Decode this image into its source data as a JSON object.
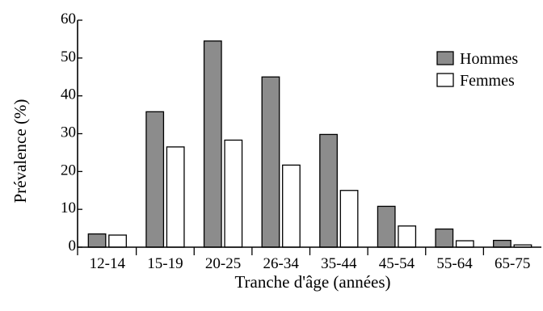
{
  "chart_data": {
    "type": "bar",
    "xlabel": "Tranche d'âge (années)",
    "ylabel": "Prévalence (%)",
    "ylim": [
      0,
      60
    ],
    "yticks": [
      {
        "value": 0,
        "label": "0"
      },
      {
        "value": 10,
        "label": "10"
      },
      {
        "value": 20,
        "label": "20"
      },
      {
        "value": 30,
        "label": "30"
      },
      {
        "value": 40,
        "label": "40"
      },
      {
        "value": 50,
        "label": "50"
      },
      {
        "value": 60,
        "label": "60"
      }
    ],
    "categories": [
      "12-14",
      "15-19",
      "20-25",
      "26-34",
      "35-44",
      "45-54",
      "55-64",
      "65-75"
    ],
    "series": [
      {
        "name": "Hommes",
        "color": "#8c8c8c",
        "values": [
          3.5,
          35.8,
          54.5,
          45,
          29.8,
          10.8,
          4.8,
          1.8
        ]
      },
      {
        "name": "Femmes",
        "color": "#ffffff",
        "values": [
          3.2,
          26.5,
          28.3,
          21.7,
          15,
          5.6,
          1.7,
          0.6
        ]
      }
    ],
    "legend": "right",
    "grid": false
  }
}
